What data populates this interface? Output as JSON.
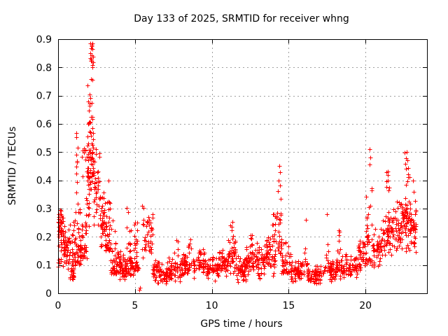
{
  "chart_data": {
    "type": "scatter",
    "title": "Day 133 of 2025, SRMTID for receiver whng",
    "xlabel": "GPS time / hours",
    "ylabel": "SRMTID / TECUs",
    "xlim": [
      0,
      24
    ],
    "ylim": [
      0,
      0.9
    ],
    "xticks": [
      0,
      5,
      10,
      15,
      20
    ],
    "yticks": [
      0,
      0.1,
      0.2,
      0.3,
      0.4,
      0.5,
      0.6,
      0.7,
      0.8,
      0.9
    ],
    "grid": true,
    "legend": "none",
    "marker": "plus",
    "marker_color": "#ff0000",
    "grid_color": "#a0a0a0",
    "frame_color": "#000000",
    "series_name": "SRMTID",
    "density_bands": [
      [
        0.0,
        0.35,
        0.14,
        0.32,
        45,
        2
      ],
      [
        0.0,
        0.35,
        0.09,
        0.14,
        8,
        0
      ],
      [
        0.35,
        0.75,
        0.07,
        0.26,
        45,
        2
      ],
      [
        0.75,
        1.05,
        0.05,
        0.3,
        40,
        1
      ],
      [
        1.05,
        1.45,
        0.1,
        0.33,
        45,
        1
      ],
      [
        1.15,
        1.3,
        0.33,
        0.62,
        10,
        0
      ],
      [
        1.45,
        1.85,
        0.12,
        0.38,
        42,
        1
      ],
      [
        1.55,
        1.8,
        0.38,
        0.55,
        8,
        0
      ],
      [
        1.85,
        2.1,
        0.22,
        0.6,
        35,
        2
      ],
      [
        1.9,
        2.05,
        0.6,
        0.78,
        8,
        0
      ],
      [
        2.05,
        2.3,
        0.35,
        0.65,
        35,
        2
      ],
      [
        2.05,
        2.28,
        0.66,
        0.885,
        16,
        0
      ],
      [
        2.3,
        2.75,
        0.22,
        0.52,
        40,
        2
      ],
      [
        2.75,
        3.05,
        0.13,
        0.38,
        35,
        2
      ],
      [
        3.05,
        3.4,
        0.15,
        0.42,
        40,
        1
      ],
      [
        3.4,
        3.85,
        0.07,
        0.3,
        42,
        1
      ],
      [
        3.85,
        4.35,
        0.04,
        0.16,
        48,
        2
      ],
      [
        4.35,
        4.9,
        0.05,
        0.14,
        45,
        2
      ],
      [
        4.45,
        4.75,
        0.14,
        0.36,
        12,
        1
      ],
      [
        4.9,
        5.25,
        0.08,
        0.3,
        30,
        1
      ],
      [
        5.45,
        6.15,
        0.1,
        0.32,
        42,
        2
      ],
      [
        6.15,
        7.05,
        0.03,
        0.12,
        60,
        2
      ],
      [
        7.05,
        8.05,
        0.04,
        0.14,
        62,
        2
      ],
      [
        7.55,
        7.8,
        0.13,
        0.19,
        6,
        0
      ],
      [
        8.05,
        9.05,
        0.05,
        0.15,
        62,
        2
      ],
      [
        8.45,
        8.7,
        0.14,
        0.2,
        6,
        0
      ],
      [
        9.05,
        9.55,
        0.06,
        0.19,
        35,
        2
      ],
      [
        9.55,
        10.45,
        0.04,
        0.14,
        55,
        2
      ],
      [
        10.45,
        11.05,
        0.05,
        0.16,
        45,
        2
      ],
      [
        11.05,
        11.55,
        0.06,
        0.21,
        40,
        2
      ],
      [
        11.15,
        11.4,
        0.2,
        0.28,
        5,
        0
      ],
      [
        11.55,
        12.25,
        0.03,
        0.14,
        52,
        2
      ],
      [
        12.25,
        12.85,
        0.05,
        0.18,
        45,
        2
      ],
      [
        12.45,
        12.65,
        0.17,
        0.22,
        5,
        0
      ],
      [
        12.85,
        13.55,
        0.04,
        0.18,
        52,
        2
      ],
      [
        13.55,
        14.15,
        0.06,
        0.22,
        45,
        2
      ],
      [
        13.9,
        14.25,
        0.16,
        0.3,
        12,
        0
      ],
      [
        14.25,
        14.55,
        0.14,
        0.42,
        26,
        1
      ],
      [
        14.55,
        15.15,
        0.07,
        0.24,
        40,
        1
      ],
      [
        15.15,
        16.0,
        0.035,
        0.12,
        55,
        2
      ],
      [
        15.95,
        16.2,
        0.1,
        0.26,
        10,
        1
      ],
      [
        16.2,
        17.35,
        0.03,
        0.1,
        68,
        2
      ],
      [
        17.35,
        17.65,
        0.08,
        0.28,
        13,
        1
      ],
      [
        17.65,
        18.1,
        0.04,
        0.12,
        40,
        2
      ],
      [
        18.1,
        18.35,
        0.08,
        0.28,
        18,
        1
      ],
      [
        18.35,
        19.5,
        0.05,
        0.14,
        70,
        2
      ],
      [
        19.5,
        20.0,
        0.07,
        0.19,
        38,
        2
      ],
      [
        20.0,
        20.45,
        0.1,
        0.38,
        35,
        1
      ],
      [
        20.45,
        21.1,
        0.08,
        0.24,
        45,
        2
      ],
      [
        21.1,
        21.75,
        0.12,
        0.33,
        48,
        2
      ],
      [
        21.3,
        21.6,
        0.33,
        0.45,
        8,
        0
      ],
      [
        21.75,
        22.45,
        0.13,
        0.36,
        55,
        2
      ],
      [
        22.45,
        23.0,
        0.14,
        0.36,
        55,
        2
      ],
      [
        22.55,
        22.85,
        0.37,
        0.52,
        9,
        0
      ],
      [
        23.0,
        23.3,
        0.12,
        0.33,
        30,
        2
      ]
    ],
    "outlier_points": [
      [
        2.1,
        0.885
      ],
      [
        2.14,
        0.868
      ],
      [
        2.2,
        0.843
      ],
      [
        2.17,
        0.822
      ],
      [
        2.12,
        0.822
      ],
      [
        2.22,
        0.8
      ],
      [
        5.28,
        0.012
      ],
      [
        5.32,
        0.02
      ],
      [
        14.38,
        0.452
      ],
      [
        14.42,
        0.43
      ],
      [
        14.35,
        0.4
      ],
      [
        16.1,
        0.26
      ],
      [
        17.5,
        0.28
      ],
      [
        20.28,
        0.51
      ],
      [
        20.32,
        0.48
      ],
      [
        20.25,
        0.455
      ],
      [
        22.68,
        0.5
      ],
      [
        22.72,
        0.47
      ],
      [
        22.78,
        0.445
      ],
      [
        23.1,
        0.4
      ],
      [
        23.15,
        0.36
      ]
    ]
  }
}
